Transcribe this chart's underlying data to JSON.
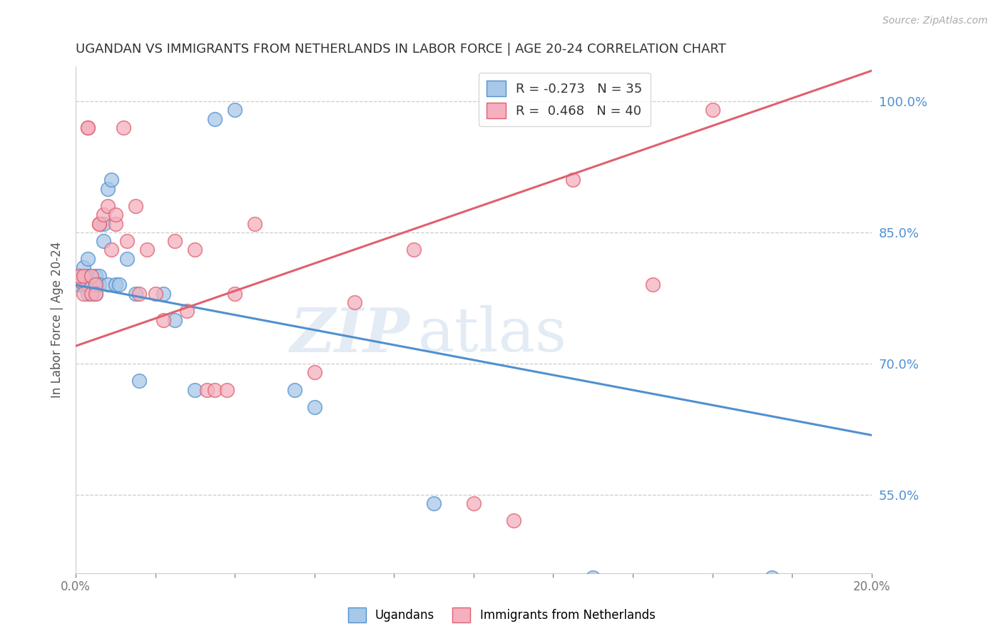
{
  "title": "UGANDAN VS IMMIGRANTS FROM NETHERLANDS IN LABOR FORCE | AGE 20-24 CORRELATION CHART",
  "source": "Source: ZipAtlas.com",
  "ylabel": "In Labor Force | Age 20-24",
  "xlim": [
    0.0,
    0.2
  ],
  "ylim": [
    0.46,
    1.04
  ],
  "yticks": [
    0.55,
    0.7,
    0.85,
    1.0
  ],
  "ytick_labels": [
    "55.0%",
    "70.0%",
    "85.0%",
    "100.0%"
  ],
  "xticks": [
    0.0,
    0.02,
    0.04,
    0.06,
    0.08,
    0.1,
    0.12,
    0.14,
    0.16,
    0.18,
    0.2
  ],
  "blue_R": -0.273,
  "blue_N": 35,
  "pink_R": 0.468,
  "pink_N": 40,
  "blue_color": "#a8c8e8",
  "pink_color": "#f4b0be",
  "blue_line_color": "#5090d0",
  "pink_line_color": "#e06070",
  "watermark_zip": "ZIP",
  "watermark_atlas": "atlas",
  "legend_blue_label": "Ugandans",
  "legend_pink_label": "Immigrants from Netherlands",
  "blue_line_x0": 0.0,
  "blue_line_y0": 0.79,
  "blue_line_x1": 0.2,
  "blue_line_y1": 0.618,
  "pink_line_x0": 0.0,
  "pink_line_y0": 0.72,
  "pink_line_x1": 0.2,
  "pink_line_y1": 1.035,
  "blue_x": [
    0.001,
    0.001,
    0.002,
    0.002,
    0.003,
    0.003,
    0.003,
    0.003,
    0.004,
    0.004,
    0.005,
    0.005,
    0.005,
    0.006,
    0.006,
    0.007,
    0.007,
    0.008,
    0.008,
    0.009,
    0.01,
    0.011,
    0.013,
    0.015,
    0.016,
    0.022,
    0.025,
    0.03,
    0.035,
    0.04,
    0.055,
    0.06,
    0.09,
    0.13,
    0.175
  ],
  "blue_y": [
    0.79,
    0.8,
    0.79,
    0.81,
    0.78,
    0.79,
    0.8,
    0.82,
    0.79,
    0.79,
    0.8,
    0.79,
    0.78,
    0.8,
    0.79,
    0.84,
    0.86,
    0.9,
    0.79,
    0.91,
    0.79,
    0.79,
    0.82,
    0.78,
    0.68,
    0.78,
    0.75,
    0.67,
    0.98,
    0.99,
    0.67,
    0.65,
    0.54,
    0.455,
    0.455
  ],
  "pink_x": [
    0.001,
    0.001,
    0.002,
    0.002,
    0.003,
    0.003,
    0.004,
    0.004,
    0.005,
    0.005,
    0.006,
    0.006,
    0.007,
    0.008,
    0.009,
    0.01,
    0.01,
    0.012,
    0.013,
    0.015,
    0.016,
    0.018,
    0.02,
    0.022,
    0.025,
    0.028,
    0.03,
    0.033,
    0.035,
    0.038,
    0.04,
    0.045,
    0.06,
    0.07,
    0.085,
    0.1,
    0.11,
    0.125,
    0.145,
    0.16
  ],
  "pink_y": [
    0.795,
    0.8,
    0.78,
    0.8,
    0.97,
    0.97,
    0.78,
    0.8,
    0.79,
    0.78,
    0.86,
    0.86,
    0.87,
    0.88,
    0.83,
    0.86,
    0.87,
    0.97,
    0.84,
    0.88,
    0.78,
    0.83,
    0.78,
    0.75,
    0.84,
    0.76,
    0.83,
    0.67,
    0.67,
    0.67,
    0.78,
    0.86,
    0.69,
    0.77,
    0.83,
    0.54,
    0.52,
    0.91,
    0.79,
    0.99
  ]
}
